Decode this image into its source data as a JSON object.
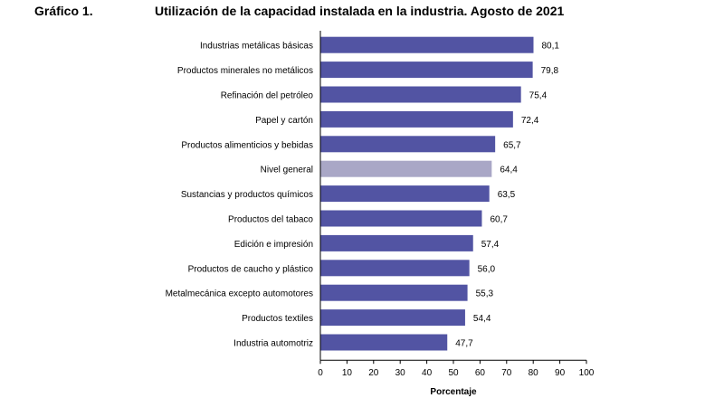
{
  "figure_label": "Gráfico 1.",
  "chart_data": {
    "type": "bar",
    "orientation": "horizontal",
    "title": "Utilización de la capacidad instalada en la industria. Agosto de 2021",
    "xlabel": "Porcentaje",
    "ylabel": "",
    "xlim": [
      0,
      100
    ],
    "xticks": [
      0,
      10,
      20,
      30,
      40,
      50,
      60,
      70,
      80,
      90,
      100
    ],
    "grid": false,
    "categories": [
      "Industrias metálicas básicas",
      "Productos minerales no metálicos",
      "Refinación del petróleo",
      "Papel y cartón",
      "Productos alimenticios y bebidas",
      "Nivel general",
      "Sustancias y productos químicos",
      "Productos del tabaco",
      "Edición e impresión",
      "Productos de caucho y plástico",
      "Metalmecánica excepto automotores",
      "Productos textiles",
      "Industria automotriz"
    ],
    "values": [
      80.1,
      79.8,
      75.4,
      72.4,
      65.7,
      64.4,
      63.5,
      60.7,
      57.4,
      56.0,
      55.3,
      54.4,
      47.7
    ],
    "value_labels": [
      "80,1",
      "79,8",
      "75,4",
      "72,4",
      "65,7",
      "64,4",
      "63,5",
      "60,7",
      "57,4",
      "56,0",
      "55,3",
      "54,4",
      "47,7"
    ],
    "highlight_category": "Nivel general",
    "colors": {
      "bar": "#5254a3",
      "highlight": "#a9a7c6",
      "axis": "#000000"
    }
  }
}
